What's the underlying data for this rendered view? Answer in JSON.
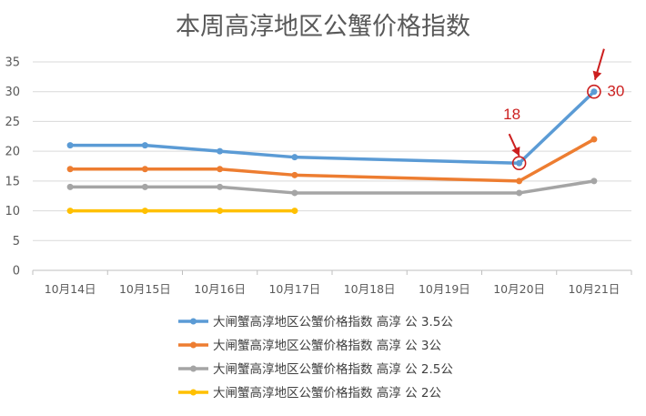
{
  "chart_data": {
    "type": "line",
    "title": "本周高淳地区公蟹价格指数",
    "xlabel": "",
    "ylabel": "",
    "ylim": [
      0,
      35
    ],
    "yticks": [
      0,
      5,
      10,
      15,
      20,
      25,
      30,
      35
    ],
    "categories": [
      "10月14日",
      "10月15日",
      "10月16日",
      "10月17日",
      "10月18日",
      "10月19日",
      "10月20日",
      "10月21日"
    ],
    "grid": true,
    "legend_position": "bottom",
    "series": [
      {
        "name": "大闸蟹高淳地区公蟹价格指数 高淳 公 3.5公",
        "color": "#5b9bd5",
        "values": [
          21,
          21,
          20,
          19,
          null,
          null,
          18,
          30
        ]
      },
      {
        "name": "大闸蟹高淳地区公蟹价格指数 高淳 公 3公",
        "color": "#ed7d31",
        "values": [
          17,
          17,
          17,
          16,
          null,
          null,
          15,
          22
        ]
      },
      {
        "name": "大闸蟹高淳地区公蟹价格指数 高淳 公 2.5公",
        "color": "#a5a5a5",
        "values": [
          14,
          14,
          14,
          13,
          null,
          null,
          13,
          15
        ]
      },
      {
        "name": "大闸蟹高淳地区公蟹价格指数 高淳 公 2公",
        "color": "#ffc000",
        "values": [
          10,
          10,
          10,
          10,
          null,
          null,
          null,
          null
        ]
      }
    ],
    "annotations": [
      {
        "text": "18",
        "category": "10月20日",
        "value": 18,
        "color": "#cc1f1f"
      },
      {
        "text": "30",
        "category": "10月21日",
        "value": 30,
        "color": "#cc1f1f"
      }
    ]
  }
}
